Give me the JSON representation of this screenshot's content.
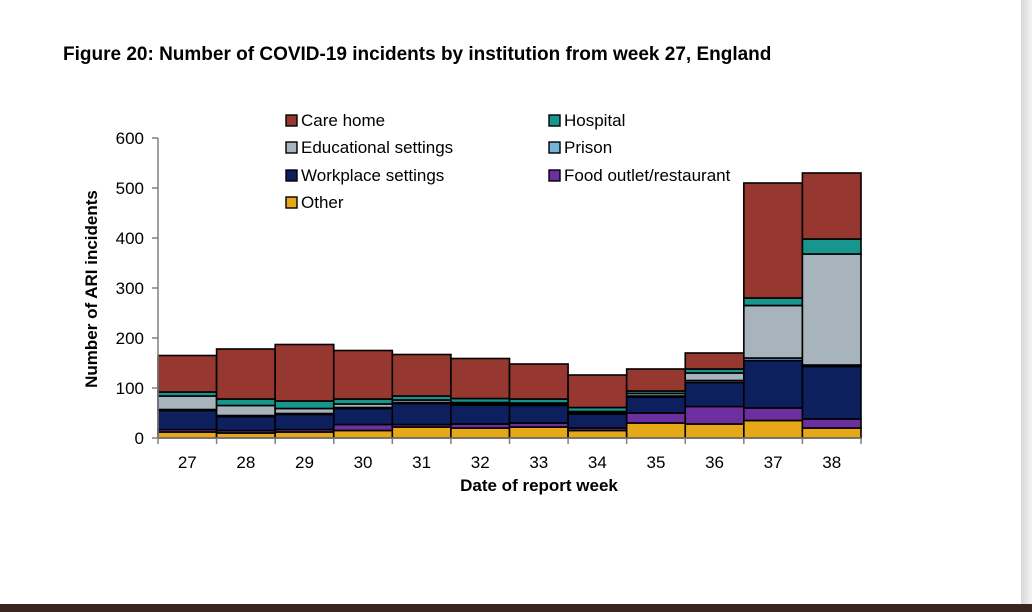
{
  "figure": {
    "title": "Figure 20: Number of COVID-19 incidents by institution from week 27, England"
  },
  "chart_data": {
    "type": "bar",
    "stacked": true,
    "categories": [
      "27",
      "28",
      "29",
      "30",
      "31",
      "32",
      "33",
      "34",
      "35",
      "36",
      "37",
      "38"
    ],
    "xlabel": "Date of report week",
    "ylabel": "Number of ARI incidents",
    "ylim": [
      0,
      600
    ],
    "yticks": [
      0,
      100,
      200,
      300,
      400,
      500,
      600
    ],
    "grid": false,
    "legend_position": "top",
    "series": [
      {
        "name": "Other",
        "color": "#e6a817",
        "values": [
          12,
          10,
          12,
          15,
          22,
          20,
          22,
          15,
          30,
          28,
          35,
          20
        ]
      },
      {
        "name": "Food outlet/restaurant",
        "color": "#6b2fa0",
        "values": [
          5,
          5,
          5,
          12,
          5,
          8,
          8,
          5,
          20,
          35,
          25,
          18
        ]
      },
      {
        "name": "Workplace settings",
        "color": "#0d1f5c",
        "values": [
          38,
          28,
          30,
          32,
          42,
          38,
          35,
          28,
          32,
          48,
          95,
          105
        ]
      },
      {
        "name": "Prison",
        "color": "#74b4d8",
        "values": [
          2,
          2,
          2,
          2,
          2,
          2,
          2,
          2,
          2,
          4,
          5,
          3
        ]
      },
      {
        "name": "Educational settings",
        "color": "#a7b4bb",
        "values": [
          27,
          20,
          10,
          7,
          5,
          3,
          3,
          3,
          5,
          15,
          105,
          222
        ]
      },
      {
        "name": "Hospital",
        "color": "#16968d",
        "values": [
          8,
          13,
          15,
          10,
          8,
          8,
          8,
          8,
          5,
          8,
          15,
          30
        ]
      },
      {
        "name": "Care home",
        "color": "#963830",
        "values": [
          73,
          100,
          113,
          97,
          83,
          80,
          70,
          65,
          44,
          32,
          230,
          132
        ]
      }
    ],
    "legend_order": [
      "Care home",
      "Hospital",
      "Educational settings",
      "Prison",
      "Workplace settings",
      "Food outlet/restaurant",
      "Other"
    ]
  }
}
